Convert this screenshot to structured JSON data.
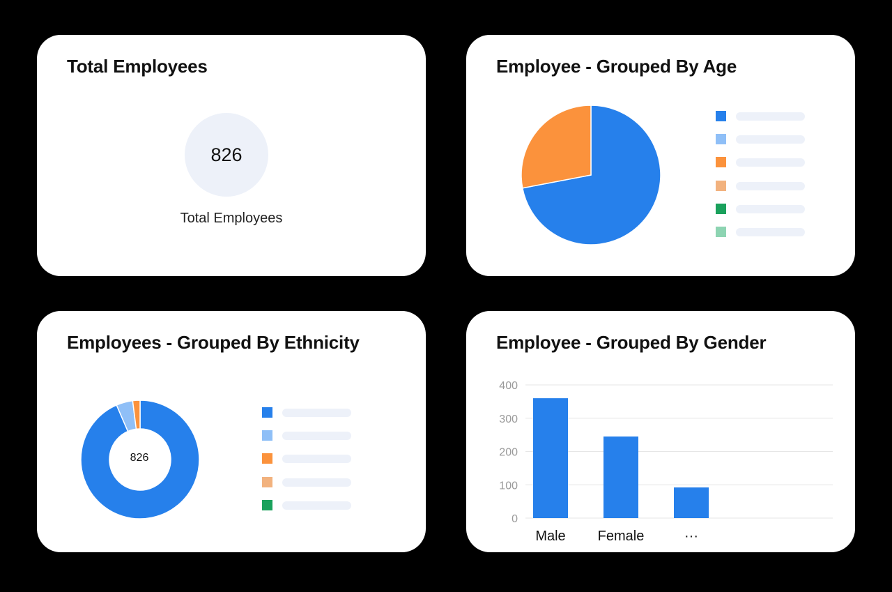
{
  "total_card": {
    "title": "Total Employees",
    "value": "826",
    "label": "Total Employees"
  },
  "age_card": {
    "title": "Employee - Grouped By Age",
    "legend_colors": [
      "#2680eb",
      "#8fbff7",
      "#fb923c",
      "#f2b27e",
      "#1aa15c",
      "#8dd4b2"
    ]
  },
  "ethnicity_card": {
    "title": "Employees - Grouped By Ethnicity",
    "center_value": "826",
    "legend_colors": [
      "#2680eb",
      "#8fbff7",
      "#fb923c",
      "#f2b27e",
      "#1aa15c"
    ]
  },
  "gender_card": {
    "title": "Employee - Grouped By Gender"
  },
  "chart_data": [
    {
      "type": "pie",
      "title": "Employee - Grouped By Age",
      "slices": [
        {
          "value": 72,
          "color": "#2680eb"
        },
        {
          "value": 28,
          "color": "#fb923c"
        }
      ]
    },
    {
      "type": "pie",
      "variant": "donut",
      "title": "Employees - Grouped By Ethnicity",
      "center_label": "826",
      "slices": [
        {
          "value": 93.5,
          "color": "#2680eb"
        },
        {
          "value": 4.5,
          "color": "#8fbff7"
        },
        {
          "value": 2.0,
          "color": "#fb923c"
        }
      ]
    },
    {
      "type": "bar",
      "title": "Employee - Grouped By Gender",
      "categories": [
        "Male",
        "Female",
        "..."
      ],
      "values": [
        360,
        245,
        92
      ],
      "ylim": [
        0,
        400
      ],
      "yticks": [
        0,
        100,
        200,
        300,
        400
      ],
      "grid": true,
      "color": "#2680eb"
    }
  ]
}
